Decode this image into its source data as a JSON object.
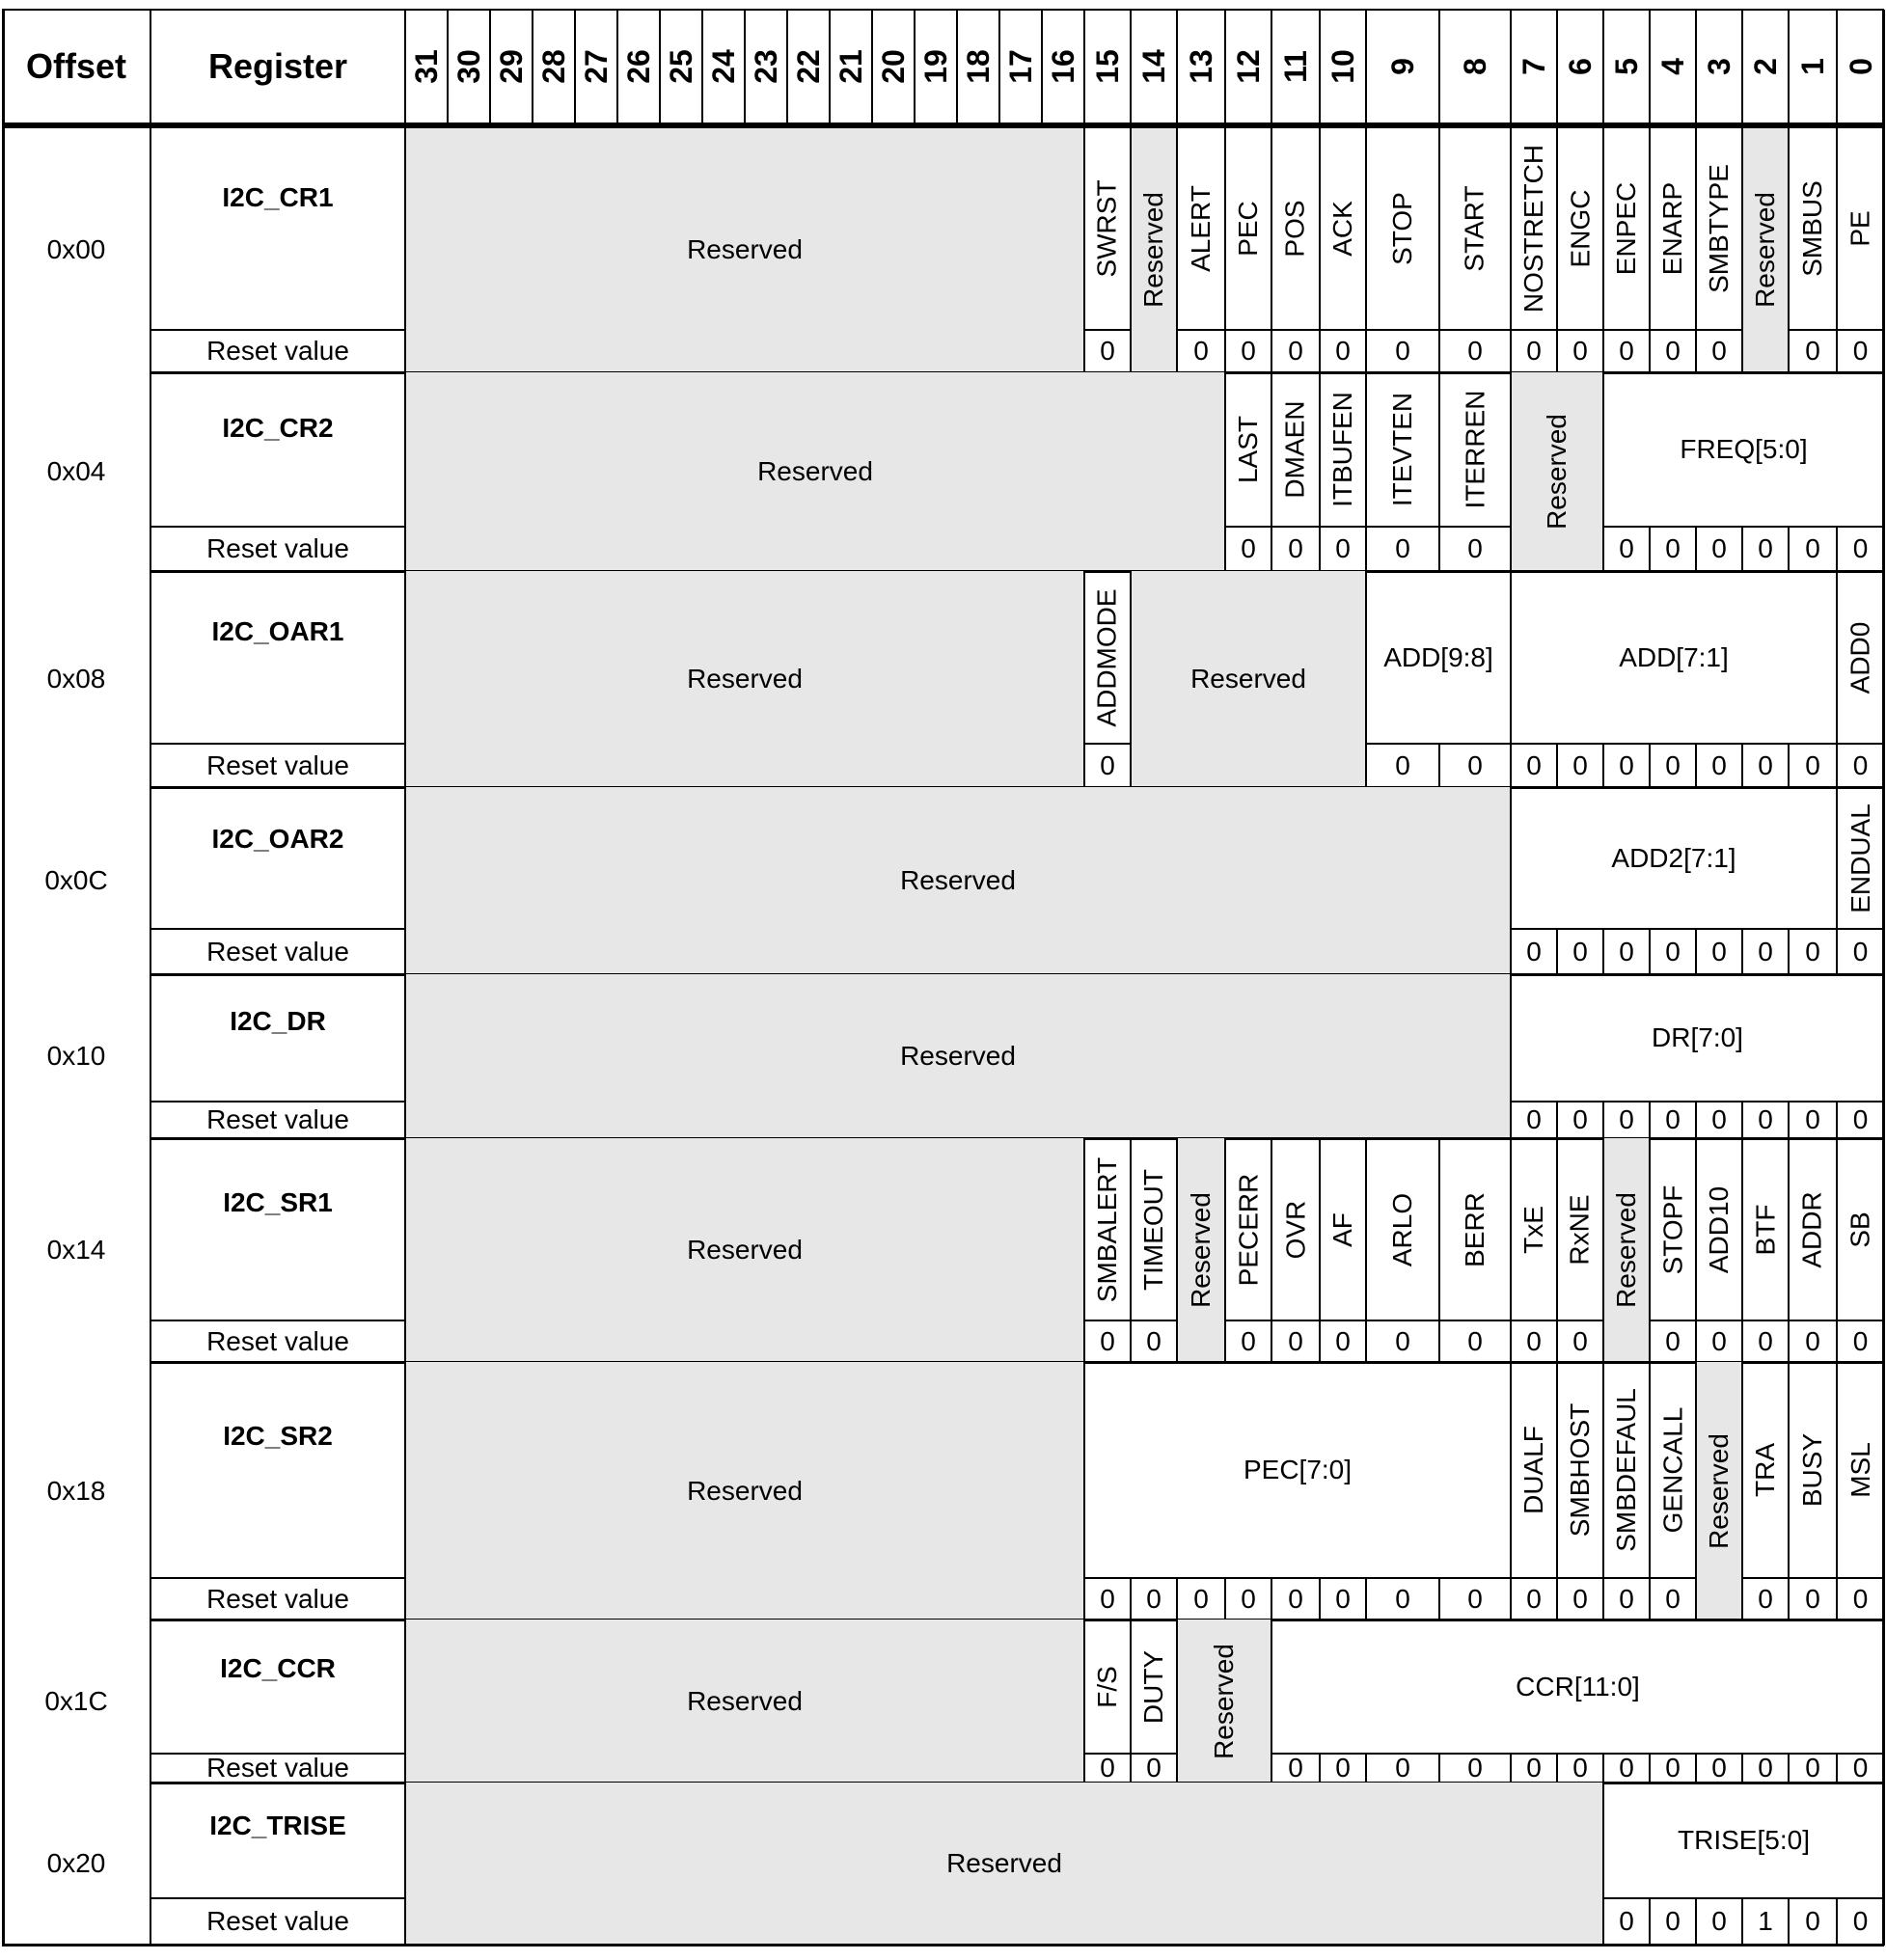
{
  "header": {
    "offset_label": "Offset",
    "register_label": "Register",
    "bits": [
      "31",
      "30",
      "29",
      "28",
      "27",
      "26",
      "25",
      "24",
      "23",
      "22",
      "21",
      "20",
      "19",
      "18",
      "17",
      "16",
      "15",
      "14",
      "13",
      "12",
      "11",
      "10",
      "9",
      "8",
      "7",
      "6",
      "5",
      "4",
      "3",
      "2",
      "1",
      "0"
    ]
  },
  "reset_label": "Reset value",
  "registers": [
    {
      "offset": "0x00",
      "name": "I2C_CR1",
      "fields": [
        {
          "hi": 31,
          "lo": 16,
          "label": "Reserved",
          "reserved": true
        },
        {
          "hi": 15,
          "lo": 15,
          "label": "SWRST"
        },
        {
          "hi": 14,
          "lo": 14,
          "label": "Reserved",
          "reserved": true
        },
        {
          "hi": 13,
          "lo": 13,
          "label": "ALERT"
        },
        {
          "hi": 12,
          "lo": 12,
          "label": "PEC"
        },
        {
          "hi": 11,
          "lo": 11,
          "label": "POS"
        },
        {
          "hi": 10,
          "lo": 10,
          "label": "ACK"
        },
        {
          "hi": 9,
          "lo": 9,
          "label": "STOP"
        },
        {
          "hi": 8,
          "lo": 8,
          "label": "START"
        },
        {
          "hi": 7,
          "lo": 7,
          "label": "NOSTRETCH"
        },
        {
          "hi": 6,
          "lo": 6,
          "label": "ENGC"
        },
        {
          "hi": 5,
          "lo": 5,
          "label": "ENPEC"
        },
        {
          "hi": 4,
          "lo": 4,
          "label": "ENARP"
        },
        {
          "hi": 3,
          "lo": 3,
          "label": "SMBTYPE"
        },
        {
          "hi": 2,
          "lo": 2,
          "label": "Reserved",
          "reserved": true
        },
        {
          "hi": 1,
          "lo": 1,
          "label": "SMBUS"
        },
        {
          "hi": 0,
          "lo": 0,
          "label": "PE"
        }
      ],
      "reset": {
        "15": "0",
        "13": "0",
        "12": "0",
        "11": "0",
        "10": "0",
        "9": "0",
        "8": "0",
        "7": "0",
        "6": "0",
        "5": "0",
        "4": "0",
        "3": "0",
        "1": "0",
        "0": "0"
      }
    },
    {
      "offset": "0x04",
      "name": "I2C_CR2",
      "fields": [
        {
          "hi": 31,
          "lo": 13,
          "label": "Reserved",
          "reserved": true
        },
        {
          "hi": 12,
          "lo": 12,
          "label": "LAST"
        },
        {
          "hi": 11,
          "lo": 11,
          "label": "DMAEN"
        },
        {
          "hi": 10,
          "lo": 10,
          "label": "ITBUFEN"
        },
        {
          "hi": 9,
          "lo": 9,
          "label": "ITEVTEN"
        },
        {
          "hi": 8,
          "lo": 8,
          "label": "ITERREN"
        },
        {
          "hi": 7,
          "lo": 6,
          "label": "Reserved",
          "reserved": true
        },
        {
          "hi": 5,
          "lo": 0,
          "label": "FREQ[5:0]"
        }
      ],
      "reset": {
        "12": "0",
        "11": "0",
        "10": "0",
        "9": "0",
        "8": "0",
        "5": "0",
        "4": "0",
        "3": "0",
        "2": "0",
        "1": "0",
        "0": "0"
      }
    },
    {
      "offset": "0x08",
      "name": "I2C_OAR1",
      "fields": [
        {
          "hi": 31,
          "lo": 16,
          "label": "Reserved",
          "reserved": true
        },
        {
          "hi": 15,
          "lo": 15,
          "label": "ADDMODE"
        },
        {
          "hi": 14,
          "lo": 10,
          "label": "Reserved",
          "reserved": true
        },
        {
          "hi": 9,
          "lo": 8,
          "label": "ADD[9:8]"
        },
        {
          "hi": 7,
          "lo": 1,
          "label": "ADD[7:1]"
        },
        {
          "hi": 0,
          "lo": 0,
          "label": "ADD0"
        }
      ],
      "reset": {
        "15": "0",
        "9": "0",
        "8": "0",
        "7": "0",
        "6": "0",
        "5": "0",
        "4": "0",
        "3": "0",
        "2": "0",
        "1": "0",
        "0": "0"
      }
    },
    {
      "offset": "0x0C",
      "name": "I2C_OAR2",
      "fields": [
        {
          "hi": 31,
          "lo": 8,
          "label": "Reserved",
          "reserved": true
        },
        {
          "hi": 7,
          "lo": 1,
          "label": "ADD2[7:1]"
        },
        {
          "hi": 0,
          "lo": 0,
          "label": "ENDUAL"
        }
      ],
      "reset": {
        "7": "0",
        "6": "0",
        "5": "0",
        "4": "0",
        "3": "0",
        "2": "0",
        "1": "0",
        "0": "0"
      }
    },
    {
      "offset": "0x10",
      "name": "I2C_DR",
      "fields": [
        {
          "hi": 31,
          "lo": 8,
          "label": "Reserved",
          "reserved": true
        },
        {
          "hi": 7,
          "lo": 0,
          "label": "DR[7:0]"
        }
      ],
      "reset": {
        "7": "0",
        "6": "0",
        "5": "0",
        "4": "0",
        "3": "0",
        "2": "0",
        "1": "0",
        "0": "0"
      }
    },
    {
      "offset": "0x14",
      "name": "I2C_SR1",
      "fields": [
        {
          "hi": 31,
          "lo": 16,
          "label": "Reserved",
          "reserved": true
        },
        {
          "hi": 15,
          "lo": 15,
          "label": "SMBALERT"
        },
        {
          "hi": 14,
          "lo": 14,
          "label": "TIMEOUT"
        },
        {
          "hi": 13,
          "lo": 13,
          "label": "Reserved",
          "reserved": true
        },
        {
          "hi": 12,
          "lo": 12,
          "label": "PECERR"
        },
        {
          "hi": 11,
          "lo": 11,
          "label": "OVR"
        },
        {
          "hi": 10,
          "lo": 10,
          "label": "AF"
        },
        {
          "hi": 9,
          "lo": 9,
          "label": "ARLO"
        },
        {
          "hi": 8,
          "lo": 8,
          "label": "BERR"
        },
        {
          "hi": 7,
          "lo": 7,
          "label": "TxE"
        },
        {
          "hi": 6,
          "lo": 6,
          "label": "RxNE"
        },
        {
          "hi": 5,
          "lo": 5,
          "label": "Reserved",
          "reserved": true
        },
        {
          "hi": 4,
          "lo": 4,
          "label": "STOPF"
        },
        {
          "hi": 3,
          "lo": 3,
          "label": "ADD10"
        },
        {
          "hi": 2,
          "lo": 2,
          "label": "BTF"
        },
        {
          "hi": 1,
          "lo": 1,
          "label": "ADDR"
        },
        {
          "hi": 0,
          "lo": 0,
          "label": "SB"
        }
      ],
      "reset": {
        "15": "0",
        "14": "0",
        "12": "0",
        "11": "0",
        "10": "0",
        "9": "0",
        "8": "0",
        "7": "0",
        "6": "0",
        "4": "0",
        "3": "0",
        "2": "0",
        "1": "0",
        "0": "0"
      }
    },
    {
      "offset": "0x18",
      "name": "I2C_SR2",
      "fields": [
        {
          "hi": 31,
          "lo": 16,
          "label": "Reserved",
          "reserved": true
        },
        {
          "hi": 15,
          "lo": 8,
          "label": "PEC[7:0]"
        },
        {
          "hi": 7,
          "lo": 7,
          "label": "DUALF"
        },
        {
          "hi": 6,
          "lo": 6,
          "label": "SMBHOST"
        },
        {
          "hi": 5,
          "lo": 5,
          "label": "SMBDEFAUL"
        },
        {
          "hi": 4,
          "lo": 4,
          "label": "GENCALL"
        },
        {
          "hi": 3,
          "lo": 3,
          "label": "Reserved",
          "reserved": true
        },
        {
          "hi": 2,
          "lo": 2,
          "label": "TRA"
        },
        {
          "hi": 1,
          "lo": 1,
          "label": "BUSY"
        },
        {
          "hi": 0,
          "lo": 0,
          "label": "MSL"
        }
      ],
      "reset": {
        "15": "0",
        "14": "0",
        "13": "0",
        "12": "0",
        "11": "0",
        "10": "0",
        "9": "0",
        "8": "0",
        "7": "0",
        "6": "0",
        "5": "0",
        "4": "0",
        "2": "0",
        "1": "0",
        "0": "0"
      }
    },
    {
      "offset": "0x1C",
      "name": "I2C_CCR",
      "fields": [
        {
          "hi": 31,
          "lo": 16,
          "label": "Reserved",
          "reserved": true
        },
        {
          "hi": 15,
          "lo": 15,
          "label": "F/S"
        },
        {
          "hi": 14,
          "lo": 14,
          "label": "DUTY"
        },
        {
          "hi": 13,
          "lo": 12,
          "label": "Reserved",
          "reserved": true
        },
        {
          "hi": 11,
          "lo": 0,
          "label": "CCR[11:0]"
        }
      ],
      "reset": {
        "15": "0",
        "14": "0",
        "11": "0",
        "10": "0",
        "9": "0",
        "8": "0",
        "7": "0",
        "6": "0",
        "5": "0",
        "4": "0",
        "3": "0",
        "2": "0",
        "1": "0",
        "0": "0"
      }
    },
    {
      "offset": "0x20",
      "name": "I2C_TRISE",
      "fields": [
        {
          "hi": 31,
          "lo": 6,
          "label": "Reserved",
          "reserved": true
        },
        {
          "hi": 5,
          "lo": 0,
          "label": "TRISE[5:0]"
        }
      ],
      "reset": {
        "5": "0",
        "4": "0",
        "3": "0",
        "2": "1",
        "1": "0",
        "0": "0"
      }
    }
  ]
}
